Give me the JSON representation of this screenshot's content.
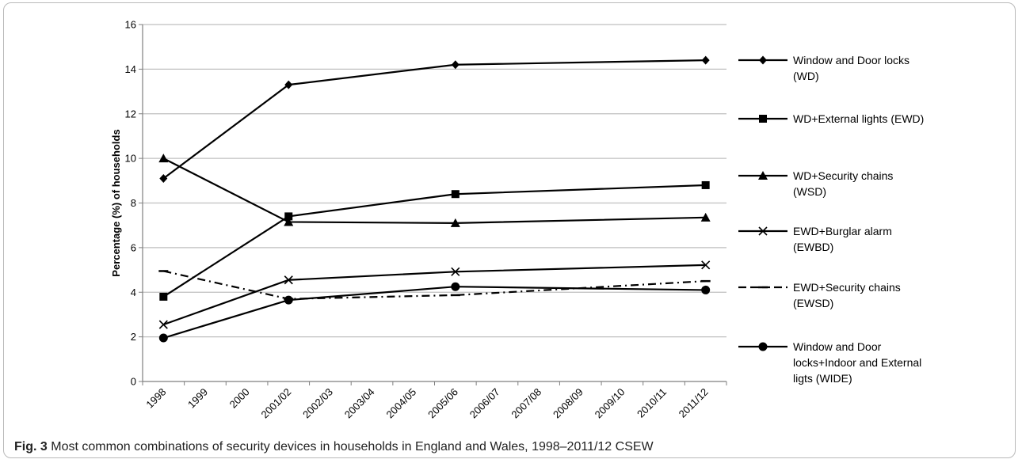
{
  "figure": {
    "label": "Fig. 3",
    "caption": "Most common combinations of security devices in households in England and Wales, 1998–2011/12 CSEW"
  },
  "chart_data": {
    "type": "line",
    "title": "",
    "xlabel": "",
    "ylabel": "Percentage (%) of households",
    "ylim": [
      0,
      16
    ],
    "yticks": [
      0,
      2,
      4,
      6,
      8,
      10,
      12,
      14,
      16
    ],
    "grid": "horizontal",
    "legend_position": "right",
    "categories": [
      "1998",
      "1999",
      "2000",
      "2001/02",
      "2002/03",
      "2003/04",
      "2004/05",
      "2005/06",
      "2006/07",
      "2007/08",
      "2008/09",
      "2009/10",
      "2010/11",
      "2011/12"
    ],
    "series": [
      {
        "key": "wd",
        "name": "Window and Door locks (WD)",
        "legend_lines": [
          "Window and Door locks",
          "(WD)"
        ],
        "marker": "diamond",
        "dash": "solid",
        "values": [
          9.1,
          null,
          null,
          13.3,
          null,
          null,
          null,
          14.2,
          null,
          null,
          null,
          null,
          null,
          14.4
        ]
      },
      {
        "key": "ewd",
        "name": "WD+External lights (EWD)",
        "legend_lines": [
          "WD+External lights (EWD)"
        ],
        "marker": "square",
        "dash": "solid",
        "values": [
          3.8,
          null,
          null,
          7.4,
          null,
          null,
          null,
          8.4,
          null,
          null,
          null,
          null,
          null,
          8.8
        ]
      },
      {
        "key": "wsd",
        "name": "WD+Security chains (WSD)",
        "legend_lines": [
          "WD+Security chains",
          "(WSD)"
        ],
        "marker": "triangle",
        "dash": "solid",
        "values": [
          10.0,
          null,
          null,
          7.15,
          null,
          null,
          null,
          7.1,
          null,
          null,
          null,
          null,
          null,
          7.35
        ]
      },
      {
        "key": "ewbd",
        "name": "EWD+Burglar alarm (EWBD)",
        "legend_lines": [
          "EWD+Burglar alarm",
          "(EWBD)"
        ],
        "marker": "x",
        "dash": "solid",
        "values": [
          2.55,
          null,
          null,
          4.55,
          null,
          null,
          null,
          4.92,
          null,
          null,
          null,
          null,
          null,
          5.22
        ]
      },
      {
        "key": "ewsd",
        "name": "EWD+Security chains (EWSD)",
        "legend_lines": [
          "EWD+Security chains",
          "(EWSD)"
        ],
        "marker": "dash",
        "dash": "dashdot",
        "values": [
          4.95,
          null,
          null,
          3.7,
          null,
          null,
          null,
          3.87,
          null,
          null,
          null,
          null,
          null,
          4.5
        ]
      },
      {
        "key": "wide",
        "name": "Window and Door locks+Indoor and External ligts (WIDE)",
        "legend_lines": [
          "Window and Door",
          "locks+Indoor and External",
          "ligts (WIDE)"
        ],
        "marker": "circle",
        "dash": "solid",
        "values": [
          1.95,
          null,
          null,
          3.65,
          null,
          null,
          null,
          4.25,
          null,
          null,
          null,
          null,
          null,
          4.1
        ]
      }
    ]
  },
  "colors": {
    "line": "#000000",
    "grid": "#bfbfbf",
    "axis": "#7f7f7f"
  }
}
